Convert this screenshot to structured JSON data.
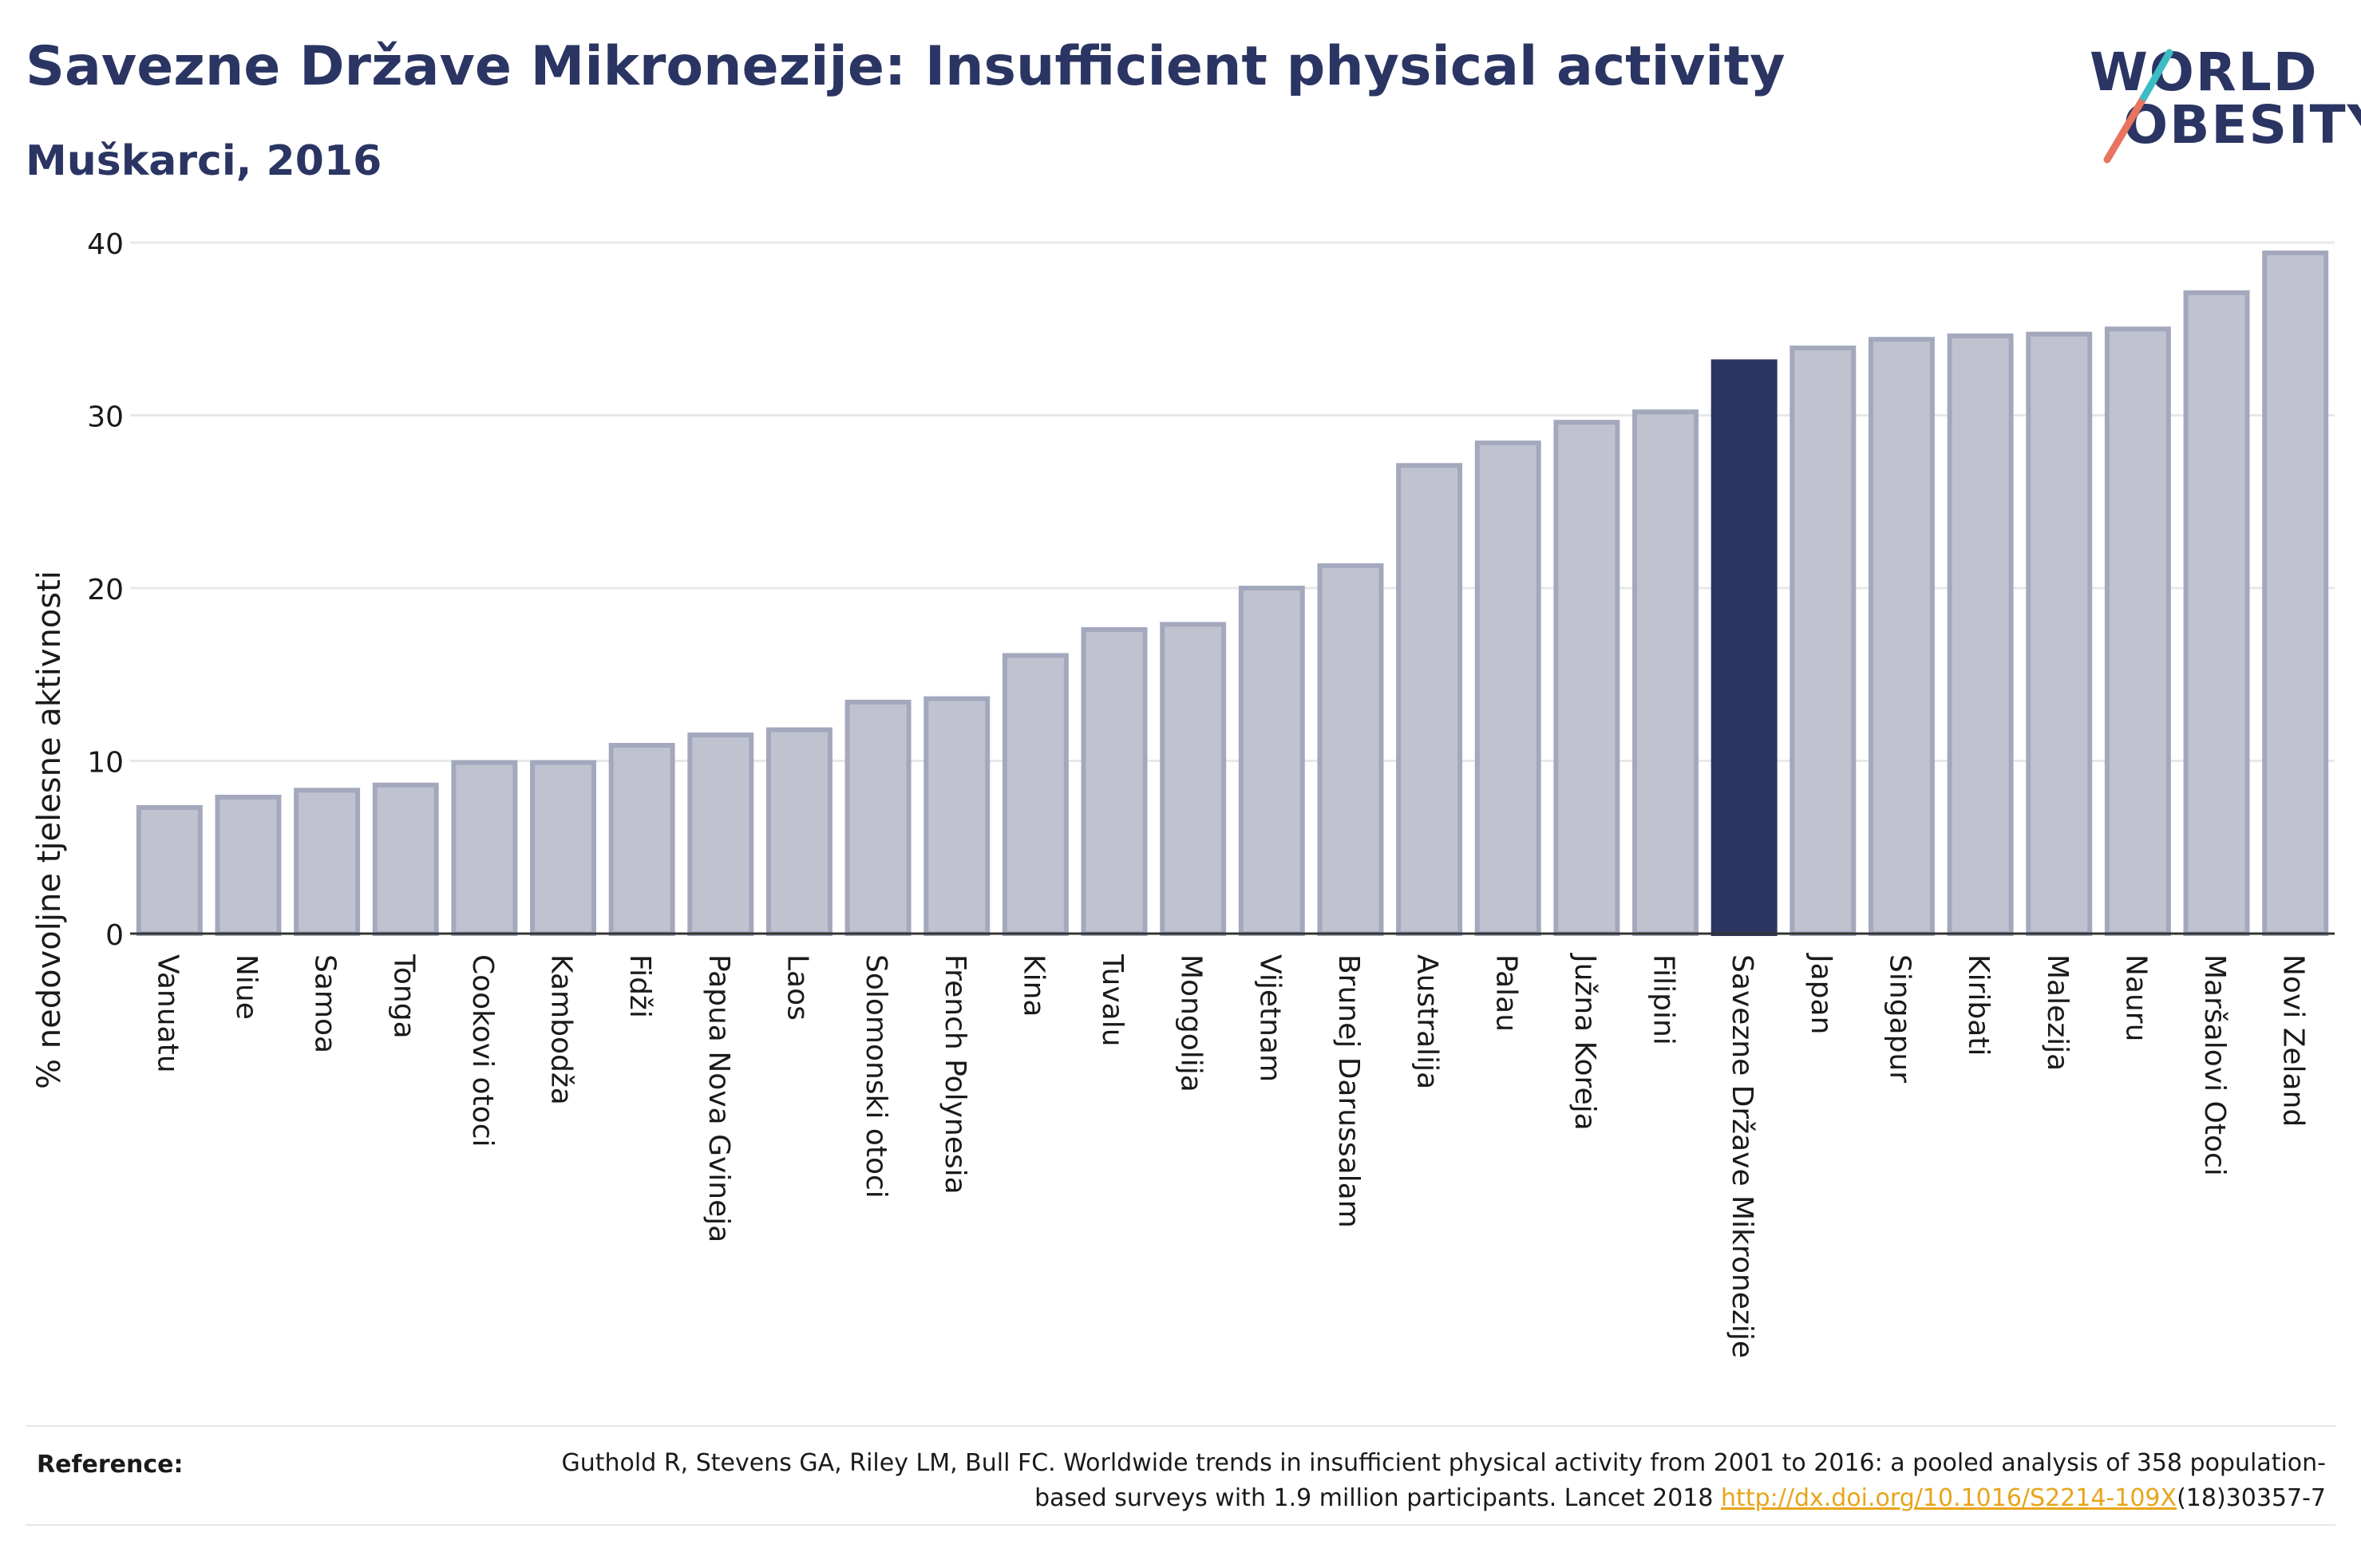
{
  "header": {
    "title": "Savezne Države Mikronezije: Insufficient physical activity",
    "subtitle": "Muškarci, 2016"
  },
  "logo": {
    "line1": "WORLD",
    "line2": "OBESITY"
  },
  "chart_data": {
    "type": "bar",
    "ylabel": "% nedovoljne tjelesne aktivnosti",
    "ylim": [
      0,
      40
    ],
    "yticks": [
      0,
      10,
      20,
      30,
      40
    ],
    "grid": true,
    "highlight_category": "Savezne Države Mikronezije",
    "colors": {
      "bar": "#c0c3cf",
      "bar_border": "#a3a8bd",
      "highlight": "#2b3563",
      "axis": "#333333",
      "grid": "#e8e8e8"
    },
    "categories": [
      "Vanuatu",
      "Niue",
      "Samoa",
      "Tonga",
      "Cookovi otoci",
      "Kambodža",
      "Fidži",
      "Papua Nova Gvineja",
      "Laos",
      "Solomonski otoci",
      "French Polynesia",
      "Kina",
      "Tuvalu",
      "Mongolija",
      "Vijetnam",
      "Brunej Darussalam",
      "Australija",
      "Palau",
      "Južna Koreja",
      "Filipini",
      "Savezne Države Mikronezije",
      "Japan",
      "Singapur",
      "Kiribati",
      "Malezija",
      "Nauru",
      "Maršalovi Otoci",
      "Novi Zeland"
    ],
    "values": [
      7.3,
      7.9,
      8.3,
      8.6,
      9.9,
      9.9,
      10.9,
      11.5,
      11.8,
      13.4,
      13.6,
      16.1,
      17.6,
      17.9,
      20.0,
      21.3,
      27.1,
      28.4,
      29.6,
      30.2,
      33.1,
      33.9,
      34.4,
      34.6,
      34.7,
      35.0,
      37.1,
      39.4
    ]
  },
  "footer": {
    "reference_label": "Reference:",
    "reference_text": "Guthold R, Stevens GA, Riley LM, Bull FC. Worldwide trends in insufficient physical activity from 2001 to 2016: a pooled analysis of 358 population-based surveys with 1.9 million participants. Lancet 2018 ",
    "reference_link": "http://dx.doi.org/10.1016/S2214-109X",
    "reference_suffix": "(18)30357-7"
  }
}
